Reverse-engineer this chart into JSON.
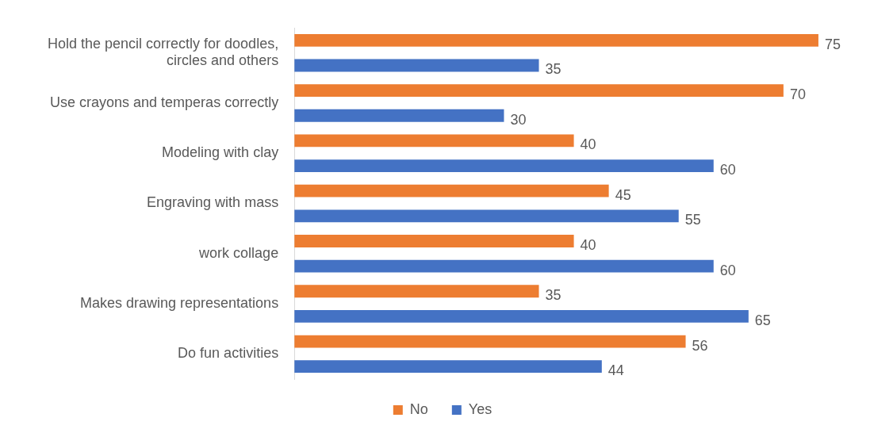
{
  "chart_data": {
    "type": "bar",
    "orientation": "horizontal",
    "categories": [
      "Hold the pencil correctly for doodles, circles and others",
      "Use crayons and temperas correctly",
      "Modeling with clay",
      "Engraving with mass",
      "work collage",
      "Makes drawing representations",
      "Do fun activities"
    ],
    "series": [
      {
        "name": "No",
        "color": "#ed7d31",
        "values": [
          75,
          70,
          40,
          45,
          40,
          35,
          56
        ]
      },
      {
        "name": "Yes",
        "color": "#4472c4",
        "values": [
          35,
          30,
          60,
          55,
          60,
          65,
          44
        ]
      }
    ],
    "data_labels": true,
    "legend": "bottom",
    "tick_labels": "y"
  }
}
